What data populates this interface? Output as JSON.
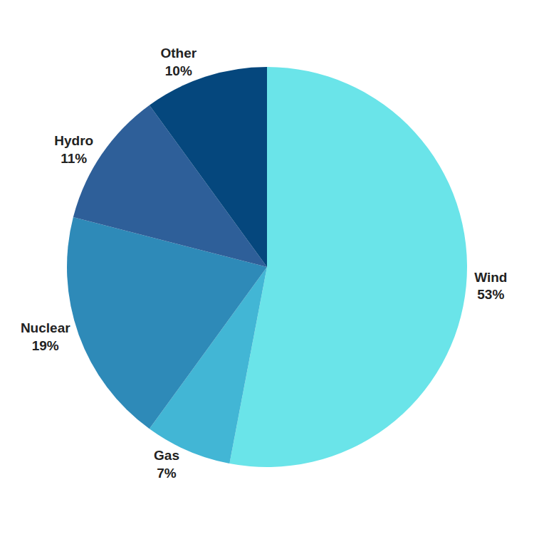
{
  "chart_data": {
    "type": "pie",
    "categories": [
      "Wind",
      "Gas",
      "Nuclear",
      "Hydro",
      "Other"
    ],
    "values": [
      53,
      7,
      19,
      11,
      10
    ],
    "value_labels": [
      "53%",
      "7%",
      "19%",
      "11%",
      "10%"
    ],
    "colors": [
      "#6ae4e9",
      "#42b6d5",
      "#2e8ab8",
      "#2e5f99",
      "#05477d"
    ],
    "data_labels": true
  }
}
